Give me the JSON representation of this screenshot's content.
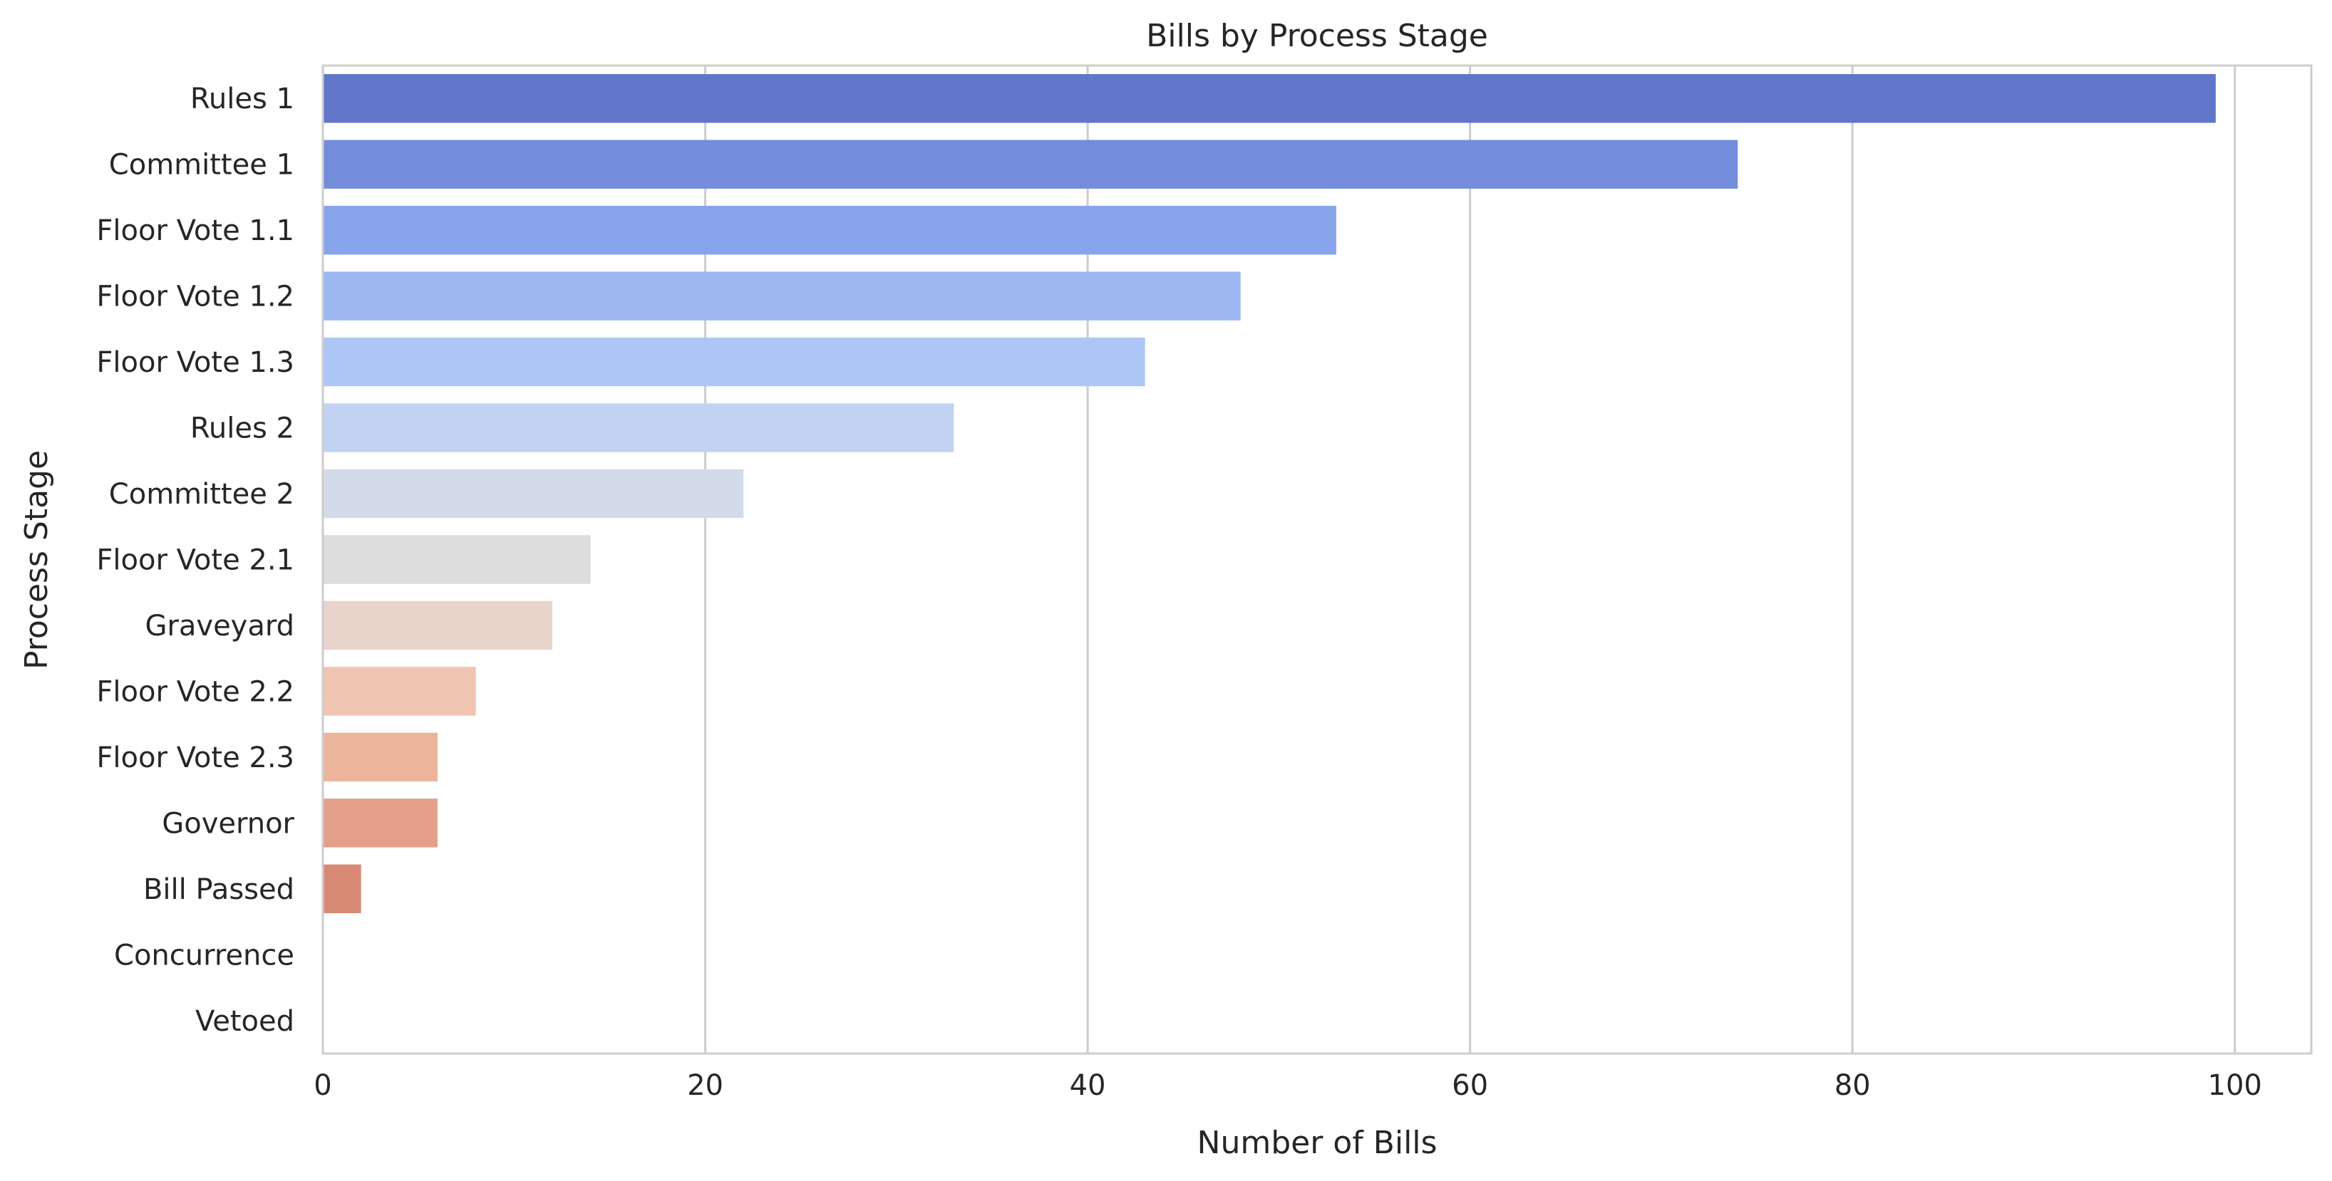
{
  "chart_data": {
    "type": "bar",
    "orientation": "horizontal",
    "title": "Bills by Process Stage",
    "xlabel": "Number of Bills",
    "ylabel": "Process Stage",
    "xlim": [
      0,
      104
    ],
    "xticks": [
      0,
      20,
      40,
      60,
      80,
      100
    ],
    "grid": true,
    "categories": [
      "Rules 1",
      "Committee 1",
      "Floor Vote 1.1",
      "Floor Vote 1.2",
      "Floor Vote 1.3",
      "Rules 2",
      "Committee 2",
      "Floor Vote 2.1",
      "Graveyard",
      "Floor Vote 2.2",
      "Floor Vote 2.3",
      "Governor",
      "Bill Passed",
      "Concurrence",
      "Vetoed"
    ],
    "values": [
      99,
      74,
      53,
      48,
      43,
      33,
      22,
      14,
      12,
      8,
      6,
      6,
      2,
      0,
      0
    ],
    "colors": [
      "#6175c9",
      "#748ddb",
      "#87a4ea",
      "#9cb7f2",
      "#aec6f5",
      "#c1d2f2",
      "#d3dbea",
      "#dddddd",
      "#e8d4ca",
      "#efc4b1",
      "#ebb59c",
      "#e4a08a",
      "#d88a74",
      "#d0735d",
      "#c45c4a"
    ]
  }
}
